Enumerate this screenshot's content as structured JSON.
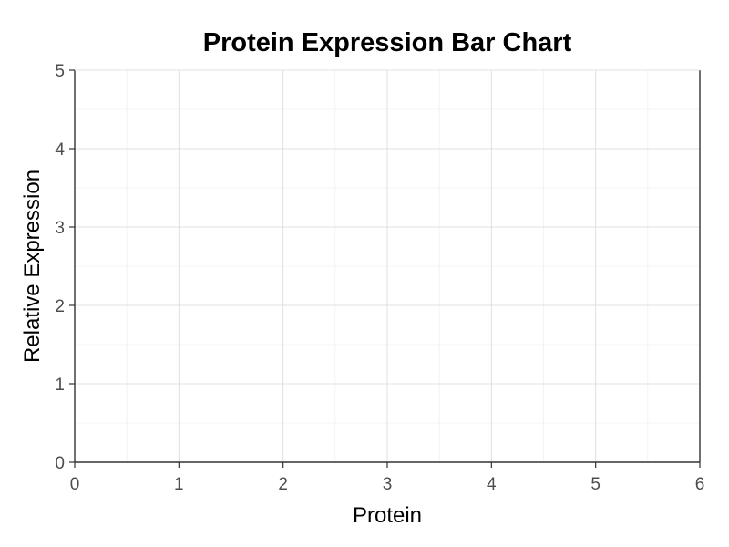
{
  "chart_data": {
    "type": "bar",
    "title": "Protein Expression Bar Chart",
    "xlabel": "Protein",
    "ylabel": "Relative Expression",
    "xlim": [
      0,
      6
    ],
    "ylim": [
      0,
      5
    ],
    "x_ticks": [
      "0",
      "1",
      "2",
      "3",
      "4",
      "5",
      "6"
    ],
    "y_ticks": [
      "0",
      "1",
      "2",
      "3",
      "4",
      "5"
    ],
    "categories": [],
    "values": [],
    "grid": true,
    "legend": "none",
    "colors": {
      "bar": "#595959",
      "grid_major": "#e0e0e0",
      "grid_minor": "#f0f0f0",
      "axis": "#333333",
      "tick_text": "#4d4d4d"
    }
  }
}
